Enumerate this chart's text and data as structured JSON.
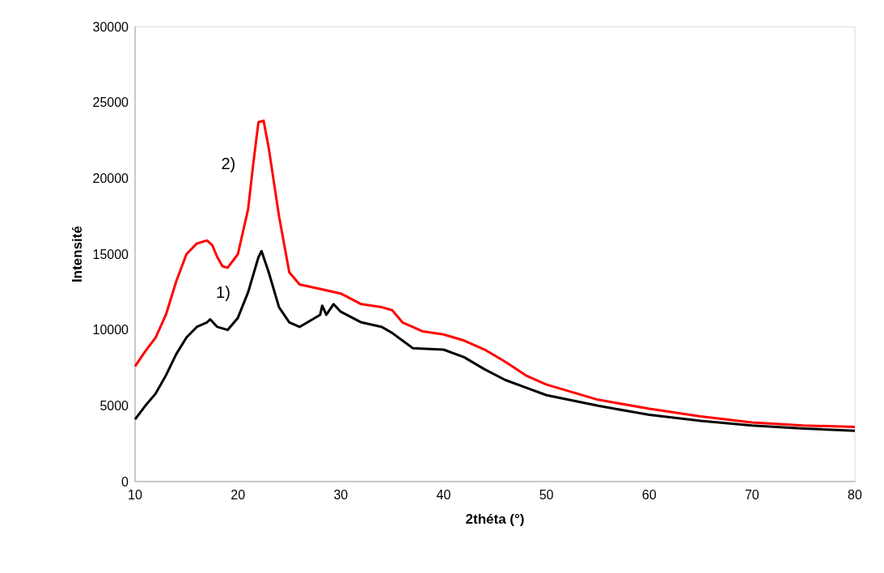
{
  "chart_data": {
    "type": "line",
    "xlabel": "2théta (°)",
    "ylabel": "Intensité",
    "xlim": [
      10,
      80
    ],
    "xticks": [
      10,
      20,
      30,
      40,
      50,
      60,
      70,
      80
    ],
    "ylim": [
      0,
      30000
    ],
    "yticks": [
      0,
      5000,
      10000,
      15000,
      20000,
      25000,
      30000
    ],
    "grid": false,
    "marker": "none",
    "line_style": "solid",
    "series": [
      {
        "name": "1)",
        "color": "#000000",
        "x": [
          10,
          11,
          12,
          13,
          14,
          15,
          16,
          17,
          17.3,
          18,
          19,
          20,
          21,
          22,
          22.3,
          23,
          24,
          25,
          26,
          27,
          28,
          28.2,
          28.6,
          29.3,
          30,
          32,
          34,
          35,
          36,
          37,
          40,
          42,
          44,
          46,
          48,
          50,
          55,
          60,
          65,
          70,
          75,
          80
        ],
        "values": [
          4100,
          5000,
          5800,
          7000,
          8400,
          9500,
          10200,
          10500,
          10700,
          10200,
          10000,
          10800,
          12500,
          14800,
          15200,
          13800,
          11500,
          10500,
          10200,
          10600,
          11000,
          11600,
          11000,
          11700,
          11200,
          10500,
          10200,
          9800,
          9300,
          8800,
          8700,
          8200,
          7400,
          6700,
          6200,
          5700,
          5000,
          4400,
          4000,
          3700,
          3500,
          3350
        ]
      },
      {
        "name": "2)",
        "color": "#ff0000",
        "x": [
          10,
          11,
          12,
          13,
          14,
          15,
          16,
          17,
          17.5,
          18,
          18.5,
          19,
          20,
          21,
          21.5,
          22,
          22.5,
          23,
          24,
          25,
          26,
          28,
          30,
          32,
          34,
          35,
          36,
          38,
          40,
          42,
          44,
          46,
          48,
          50,
          55,
          60,
          65,
          70,
          75,
          80
        ],
        "values": [
          7600,
          8600,
          9500,
          11000,
          13200,
          15000,
          15700,
          15900,
          15600,
          14800,
          14200,
          14100,
          15000,
          18000,
          21000,
          23700,
          23800,
          22000,
          17500,
          13800,
          13000,
          12700,
          12400,
          11700,
          11500,
          11300,
          10500,
          9900,
          9700,
          9300,
          8700,
          7900,
          7000,
          6400,
          5400,
          4800,
          4300,
          3900,
          3700,
          3600
        ]
      }
    ]
  }
}
